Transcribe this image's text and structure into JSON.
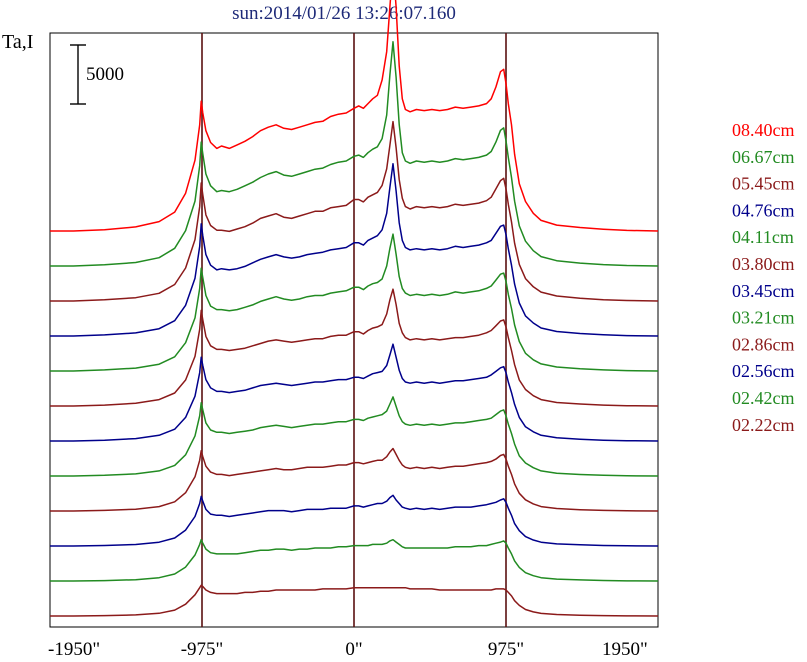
{
  "title": "sun:2014/01/26 13:26:07.160",
  "ylabel": "Ta,I",
  "scale_bar": {
    "label": "5000",
    "value": 5000
  },
  "chart_data": {
    "type": "line",
    "title": "sun:2014/01/26 13:26:07.160",
    "ylabel": "Ta,I",
    "xlabel": "",
    "xlim": [
      -1950,
      1950
    ],
    "x_tick_labels": [
      "-1950\"",
      "-975\"",
      "0\"",
      "975\"",
      "1950\""
    ],
    "x_ticks": [
      -1950,
      -975,
      0,
      975,
      1950
    ],
    "vertical_reference_lines": [
      -975,
      0,
      975
    ],
    "offset_step": 5000,
    "grid": false,
    "legend_position": "right",
    "x": [
      -1950,
      -1800,
      -1600,
      -1400,
      -1250,
      -1150,
      -1080,
      -1020,
      -990,
      -980,
      -970,
      -950,
      -920,
      -880,
      -850,
      -800,
      -750,
      -700,
      -650,
      -600,
      -550,
      -500,
      -450,
      -400,
      -350,
      -300,
      -250,
      -200,
      -150,
      -100,
      -50,
      0,
      30,
      60,
      90,
      120,
      150,
      180,
      210,
      230,
      250,
      270,
      290,
      310,
      330,
      360,
      400,
      450,
      500,
      550,
      600,
      650,
      700,
      750,
      800,
      850,
      880,
      910,
      940,
      960,
      975,
      990,
      1010,
      1030,
      1060,
      1100,
      1150,
      1200,
      1300,
      1450,
      1600,
      1750,
      1950
    ],
    "series": [
      {
        "name": "08.40cm",
        "color": "#ff0000",
        "values": [
          0,
          0,
          100,
          350,
          800,
          1600,
          3200,
          6000,
          9000,
          11000,
          10000,
          8500,
          7500,
          7000,
          7200,
          7000,
          7300,
          7600,
          8000,
          8500,
          8800,
          9000,
          8700,
          8600,
          8800,
          9000,
          9200,
          9300,
          9700,
          9900,
          10000,
          10400,
          10600,
          10400,
          10800,
          11200,
          11500,
          12800,
          15200,
          19000,
          22500,
          19000,
          14000,
          11200,
          10300,
          10100,
          10300,
          10200,
          10300,
          10200,
          10300,
          10500,
          10400,
          10500,
          10600,
          10800,
          11200,
          12200,
          13500,
          13700,
          12500,
          10800,
          9000,
          6500,
          4000,
          2500,
          1500,
          900,
          500,
          300,
          150,
          50,
          0
        ]
      },
      {
        "name": "06.67cm",
        "color": "#228b22",
        "values": [
          0,
          0,
          100,
          300,
          700,
          1500,
          3000,
          5500,
          8500,
          10500,
          9500,
          7800,
          6800,
          6300,
          6400,
          6300,
          6500,
          6800,
          7100,
          7500,
          7800,
          8000,
          7700,
          7600,
          7800,
          8000,
          8200,
          8300,
          8600,
          8800,
          8900,
          9300,
          9400,
          9200,
          9600,
          9900,
          10100,
          10800,
          12800,
          16200,
          19000,
          16000,
          12000,
          9600,
          8900,
          8700,
          8900,
          8800,
          8900,
          8800,
          8900,
          9100,
          9000,
          9100,
          9200,
          9400,
          9700,
          10500,
          11500,
          11700,
          10600,
          9200,
          7500,
          5500,
          3400,
          2100,
          1300,
          800,
          450,
          250,
          120,
          40,
          0
        ]
      },
      {
        "name": "05.45cm",
        "color": "#8b1a1a",
        "values": [
          0,
          0,
          100,
          280,
          650,
          1400,
          2800,
          5200,
          8000,
          10000,
          9000,
          7300,
          6400,
          6000,
          6000,
          5900,
          6100,
          6300,
          6600,
          7000,
          7200,
          7400,
          7100,
          7000,
          7200,
          7400,
          7600,
          7600,
          7900,
          8000,
          8100,
          8600,
          8600,
          8400,
          8800,
          9000,
          9200,
          9800,
          11200,
          13200,
          15200,
          13000,
          10300,
          8700,
          8000,
          7800,
          8000,
          7900,
          8000,
          7900,
          8000,
          8200,
          8100,
          8200,
          8300,
          8500,
          8800,
          9500,
          10200,
          10400,
          9500,
          8200,
          6700,
          4900,
          3100,
          1900,
          1200,
          750,
          420,
          230,
          110,
          40,
          0
        ]
      },
      {
        "name": "04.76cm",
        "color": "#00008b",
        "values": [
          0,
          0,
          90,
          260,
          620,
          1300,
          2600,
          4900,
          7600,
          9500,
          8500,
          6900,
          6000,
          5600,
          5700,
          5600,
          5700,
          5900,
          6200,
          6500,
          6700,
          6900,
          6700,
          6600,
          6700,
          6900,
          7000,
          7100,
          7300,
          7400,
          7500,
          7900,
          7900,
          7700,
          8100,
          8300,
          8500,
          9000,
          10400,
          12600,
          14600,
          12300,
          9600,
          8100,
          7500,
          7300,
          7400,
          7300,
          7400,
          7300,
          7400,
          7600,
          7500,
          7600,
          7700,
          7900,
          8100,
          8700,
          9300,
          9400,
          8600,
          7400,
          6000,
          4400,
          2800,
          1700,
          1100,
          680,
          380,
          210,
          100,
          35,
          0
        ]
      },
      {
        "name": "04.11cm",
        "color": "#228b22",
        "values": [
          0,
          0,
          90,
          250,
          580,
          1200,
          2400,
          4500,
          7000,
          8700,
          7900,
          6400,
          5500,
          5200,
          5200,
          5100,
          5200,
          5400,
          5600,
          5900,
          6100,
          6300,
          6100,
          6000,
          6100,
          6300,
          6400,
          6400,
          6600,
          6700,
          6800,
          7100,
          7100,
          6900,
          7200,
          7400,
          7500,
          7800,
          8900,
          10400,
          11600,
          9900,
          8000,
          7000,
          6600,
          6400,
          6500,
          6400,
          6500,
          6400,
          6500,
          6700,
          6600,
          6700,
          6800,
          7000,
          7200,
          7700,
          8200,
          8300,
          7600,
          6500,
          5300,
          3900,
          2500,
          1500,
          950,
          600,
          340,
          190,
          90,
          30,
          0
        ]
      },
      {
        "name": "03.80cm",
        "color": "#8b1a1a",
        "values": [
          0,
          0,
          80,
          230,
          540,
          1100,
          2200,
          4200,
          6500,
          8100,
          7300,
          5900,
          5100,
          4800,
          4800,
          4700,
          4800,
          4900,
          5100,
          5300,
          5500,
          5600,
          5500,
          5400,
          5500,
          5600,
          5700,
          5700,
          5900,
          6000,
          6000,
          6300,
          6300,
          6100,
          6400,
          6600,
          6700,
          6900,
          7800,
          9000,
          9900,
          8600,
          7000,
          6200,
          5800,
          5600,
          5700,
          5600,
          5700,
          5600,
          5700,
          5800,
          5800,
          5900,
          6000,
          6200,
          6400,
          6800,
          7200,
          7300,
          6700,
          5800,
          4700,
          3500,
          2200,
          1400,
          870,
          540,
          300,
          170,
          80,
          25,
          0
        ]
      },
      {
        "name": "03.45cm",
        "color": "#00008b",
        "values": [
          0,
          0,
          70,
          200,
          480,
          1000,
          2000,
          3800,
          5800,
          7100,
          6400,
          5200,
          4500,
          4200,
          4200,
          4100,
          4200,
          4300,
          4500,
          4700,
          4800,
          4900,
          4800,
          4700,
          4800,
          4900,
          5000,
          5000,
          5100,
          5200,
          5200,
          5400,
          5400,
          5300,
          5500,
          5700,
          5800,
          5900,
          6400,
          7300,
          8200,
          7100,
          6000,
          5300,
          5000,
          4900,
          5000,
          4900,
          5000,
          4900,
          5000,
          5100,
          5100,
          5200,
          5300,
          5400,
          5600,
          5900,
          6200,
          6300,
          5800,
          5000,
          4100,
          3100,
          2000,
          1200,
          780,
          480,
          270,
          150,
          70,
          25,
          0
        ]
      },
      {
        "name": "03.21cm",
        "color": "#228b22",
        "values": [
          0,
          0,
          60,
          180,
          430,
          900,
          1800,
          3400,
          5100,
          6200,
          5600,
          4500,
          3900,
          3700,
          3700,
          3600,
          3700,
          3800,
          3900,
          4100,
          4200,
          4300,
          4200,
          4100,
          4200,
          4300,
          4400,
          4400,
          4500,
          4600,
          4600,
          4800,
          4800,
          4700,
          4900,
          5000,
          5100,
          5200,
          5500,
          6100,
          6700,
          5900,
          5100,
          4600,
          4400,
          4300,
          4400,
          4300,
          4400,
          4300,
          4400,
          4500,
          4500,
          4600,
          4700,
          4800,
          4900,
          5200,
          5500,
          5600,
          5100,
          4400,
          3600,
          2700,
          1700,
          1100,
          700,
          430,
          240,
          130,
          60,
          20,
          0
        ]
      },
      {
        "name": "02.86cm",
        "color": "#8b1a1a",
        "values": [
          0,
          0,
          50,
          150,
          370,
          780,
          1550,
          2900,
          4300,
          5100,
          4600,
          3800,
          3300,
          3100,
          3100,
          3000,
          3100,
          3200,
          3300,
          3400,
          3500,
          3600,
          3500,
          3500,
          3600,
          3700,
          3700,
          3700,
          3800,
          3900,
          3900,
          4100,
          4100,
          4000,
          4100,
          4200,
          4300,
          4300,
          4600,
          5000,
          5300,
          4800,
          4300,
          3900,
          3700,
          3600,
          3700,
          3600,
          3700,
          3600,
          3700,
          3800,
          3800,
          3900,
          4000,
          4100,
          4200,
          4400,
          4700,
          4800,
          4400,
          3800,
          3100,
          2300,
          1500,
          950,
          600,
          370,
          210,
          110,
          50,
          15,
          0
        ]
      },
      {
        "name": "02.56cm",
        "color": "#00008b",
        "values": [
          0,
          0,
          40,
          130,
          320,
          680,
          1350,
          2500,
          3600,
          4200,
          3800,
          3100,
          2700,
          2600,
          2600,
          2500,
          2600,
          2700,
          2800,
          2900,
          3000,
          3000,
          3000,
          2900,
          3000,
          3100,
          3100,
          3100,
          3200,
          3200,
          3200,
          3400,
          3400,
          3300,
          3400,
          3500,
          3600,
          3600,
          3800,
          4100,
          4300,
          3900,
          3600,
          3300,
          3200,
          3100,
          3200,
          3100,
          3200,
          3100,
          3200,
          3300,
          3300,
          3300,
          3400,
          3500,
          3600,
          3700,
          3900,
          4000,
          3700,
          3200,
          2600,
          1900,
          1300,
          800,
          510,
          320,
          180,
          100,
          45,
          15,
          0
        ]
      },
      {
        "name": "02.42cm",
        "color": "#228b22",
        "values": [
          0,
          0,
          35,
          110,
          280,
          590,
          1180,
          2200,
          3100,
          3500,
          3200,
          2700,
          2400,
          2300,
          2300,
          2300,
          2300,
          2400,
          2500,
          2600,
          2600,
          2700,
          2700,
          2600,
          2700,
          2700,
          2800,
          2800,
          2800,
          2900,
          2900,
          3000,
          3000,
          3000,
          3000,
          3100,
          3100,
          3100,
          3200,
          3400,
          3500,
          3300,
          3100,
          2900,
          2800,
          2800,
          2800,
          2800,
          2800,
          2800,
          2800,
          2900,
          2900,
          2900,
          3000,
          3000,
          3100,
          3200,
          3300,
          3400,
          3200,
          2800,
          2300,
          1700,
          1150,
          700,
          450,
          280,
          160,
          90,
          40,
          12,
          0
        ]
      },
      {
        "name": "02.22cm",
        "color": "#8b1a1a",
        "values": [
          0,
          0,
          30,
          90,
          230,
          500,
          1000,
          1800,
          2400,
          2600,
          2500,
          2200,
          2000,
          1900,
          1900,
          1900,
          1900,
          2000,
          2000,
          2100,
          2100,
          2200,
          2200,
          2200,
          2200,
          2200,
          2200,
          2300,
          2300,
          2300,
          2300,
          2400,
          2400,
          2400,
          2400,
          2400,
          2400,
          2400,
          2400,
          2400,
          2400,
          2400,
          2400,
          2400,
          2400,
          2300,
          2300,
          2300,
          2300,
          2200,
          2200,
          2200,
          2200,
          2200,
          2200,
          2200,
          2200,
          2300,
          2300,
          2300,
          2200,
          2000,
          1700,
          1300,
          900,
          550,
          350,
          220,
          130,
          70,
          30,
          10,
          0
        ]
      }
    ]
  }
}
